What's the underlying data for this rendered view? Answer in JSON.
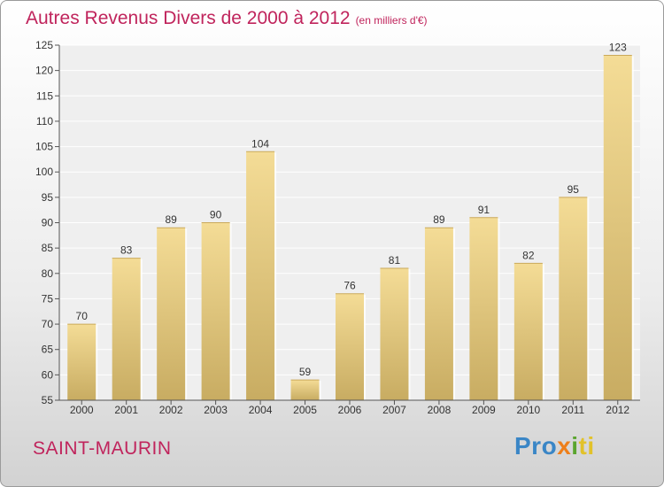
{
  "chart_data": {
    "type": "bar",
    "title": "Autres Revenus Divers de 2000 à 2012",
    "subtitle": "(en milliers d'€)",
    "categories": [
      "2000",
      "2001",
      "2002",
      "2003",
      "2004",
      "2005",
      "2006",
      "2007",
      "2008",
      "2009",
      "2010",
      "2011",
      "2012"
    ],
    "values": [
      70,
      83,
      89,
      90,
      104,
      59,
      76,
      81,
      89,
      91,
      82,
      95,
      123
    ],
    "ylim": [
      55,
      125
    ],
    "yticks": [
      55,
      60,
      65,
      70,
      75,
      80,
      85,
      90,
      95,
      100,
      105,
      110,
      115,
      120,
      125
    ],
    "xlabel": "",
    "ylabel": "",
    "grid": true,
    "bar_color": "#e6c980"
  },
  "commune": "SAINT-MAURIN",
  "logo": {
    "p1": "Pro",
    "p2": "x",
    "p3": "i",
    "p4": "ti"
  }
}
